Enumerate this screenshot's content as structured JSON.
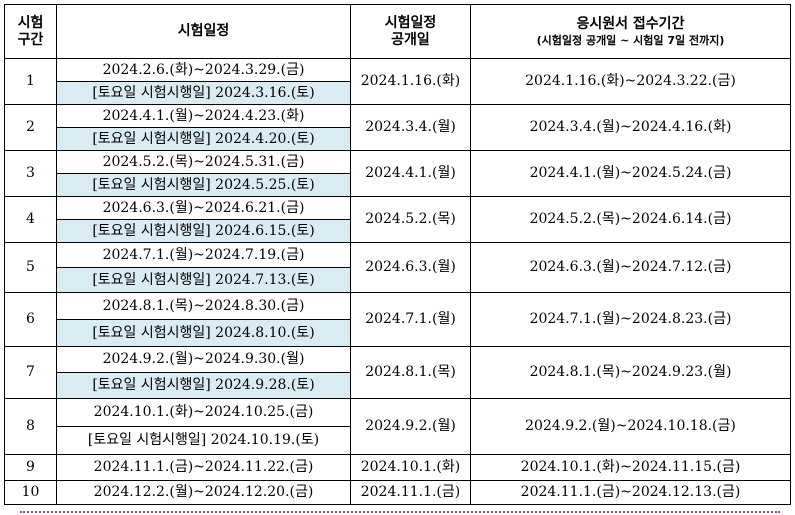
{
  "table": {
    "headers": {
      "section_line1": "시험",
      "section_line2": "구간",
      "schedule": "시험일정",
      "release_line1": "시험일정",
      "release_line2": "공개일",
      "application": "응시원서 접수기간",
      "application_note": "(시험일정 공개일 ~ 시험일 7일 전까지)"
    },
    "rows": [
      {
        "no": "1",
        "period": "2024.2.6.(화)~2024.3.29.(금)",
        "saturday": "[토요일 시험시행일] 2024.3.16.(토)",
        "release": "2024.1.16.(화)",
        "application": "2024.1.16.(화)~2024.3.22.(금)"
      },
      {
        "no": "2",
        "period": "2024.4.1.(월)~2024.4.23.(화)",
        "saturday": "[토요일 시험시행일] 2024.4.20.(토)",
        "release": "2024.3.4.(월)",
        "application": "2024.3.4.(월)~2024.4.16.(화)"
      },
      {
        "no": "3",
        "period": "2024.5.2.(목)~2024.5.31.(금)",
        "saturday": "[토요일 시험시행일] 2024.5.25.(토)",
        "release": "2024.4.1.(월)",
        "application": "2024.4.1.(월)~2024.5.24.(금)"
      },
      {
        "no": "4",
        "period": "2024.6.3.(월)~2024.6.21.(금)",
        "saturday": "[토요일 시험시행일] 2024.6.15.(토)",
        "release": "2024.5.2.(목)",
        "application": "2024.5.2.(목)~2024.6.14.(금)"
      },
      {
        "no": "5",
        "period": "2024.7.1.(월)~2024.7.19.(금)",
        "saturday": "[토요일 시험시행일] 2024.7.13.(토)",
        "release": "2024.6.3.(월)",
        "application": "2024.6.3.(월)~2024.7.12.(금)"
      },
      {
        "no": "6",
        "period": "2024.8.1.(목)~2024.8.30.(금)",
        "saturday": "[토요일 시험시행일] 2024.8.10.(토)",
        "release": "2024.7.1.(월)",
        "application": "2024.7.1.(월)~2024.8.23.(금)"
      },
      {
        "no": "7",
        "period": "2024.9.2.(월)~2024.9.30.(월)",
        "saturday": "[토요일 시험시행일] 2024.9.28.(토)",
        "release": "2024.8.1.(목)",
        "application": "2024.8.1.(목)~2024.9.23.(월)"
      },
      {
        "no": "8",
        "period": "2024.10.1.(화)~2024.10.25.(금)",
        "saturday": "[토요일 시험시행일] 2024.10.19.(토)",
        "release": "2024.9.2.(월)",
        "application": "2024.9.2.(월)~2024.10.18.(금)"
      },
      {
        "no": "9",
        "period": "2024.11.1.(금)~2024.11.22.(금)",
        "release": "2024.10.1.(화)",
        "application": "2024.10.1.(화)~2024.11.15.(금)"
      },
      {
        "no": "10",
        "period": "2024.12.2.(월)~2024.12.20.(금)",
        "release": "2024.11.1.(금)",
        "application": "2024.11.1.(금)~2024.12.13.(금)"
      }
    ]
  }
}
